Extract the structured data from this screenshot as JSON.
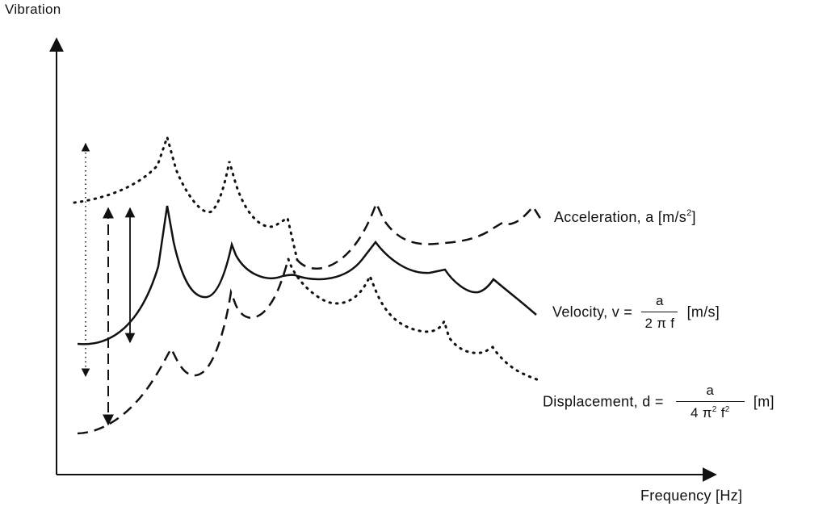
{
  "axes": {
    "y_label": "Vibration",
    "x_label": "Frequency [Hz]"
  },
  "curves": {
    "acceleration": {
      "label": "Acceleration, a [m/s",
      "exponent": "2",
      "label_close": "]",
      "style": "dotted-then-dashed"
    },
    "velocity": {
      "label": "Velocity, v =",
      "numerator": "a",
      "denominator": "2 π f",
      "unit": "[m/s]",
      "style": "solid"
    },
    "displacement": {
      "label": "Displacement, d =",
      "numerator": "a",
      "denominator_a": "4 π",
      "denominator_exp1": "2",
      "denominator_b": " f",
      "denominator_exp2": "2",
      "unit": "[m]",
      "style": "dashed-then-dotted"
    }
  },
  "colors": {
    "ink": "#111111",
    "background": "#ffffff"
  }
}
